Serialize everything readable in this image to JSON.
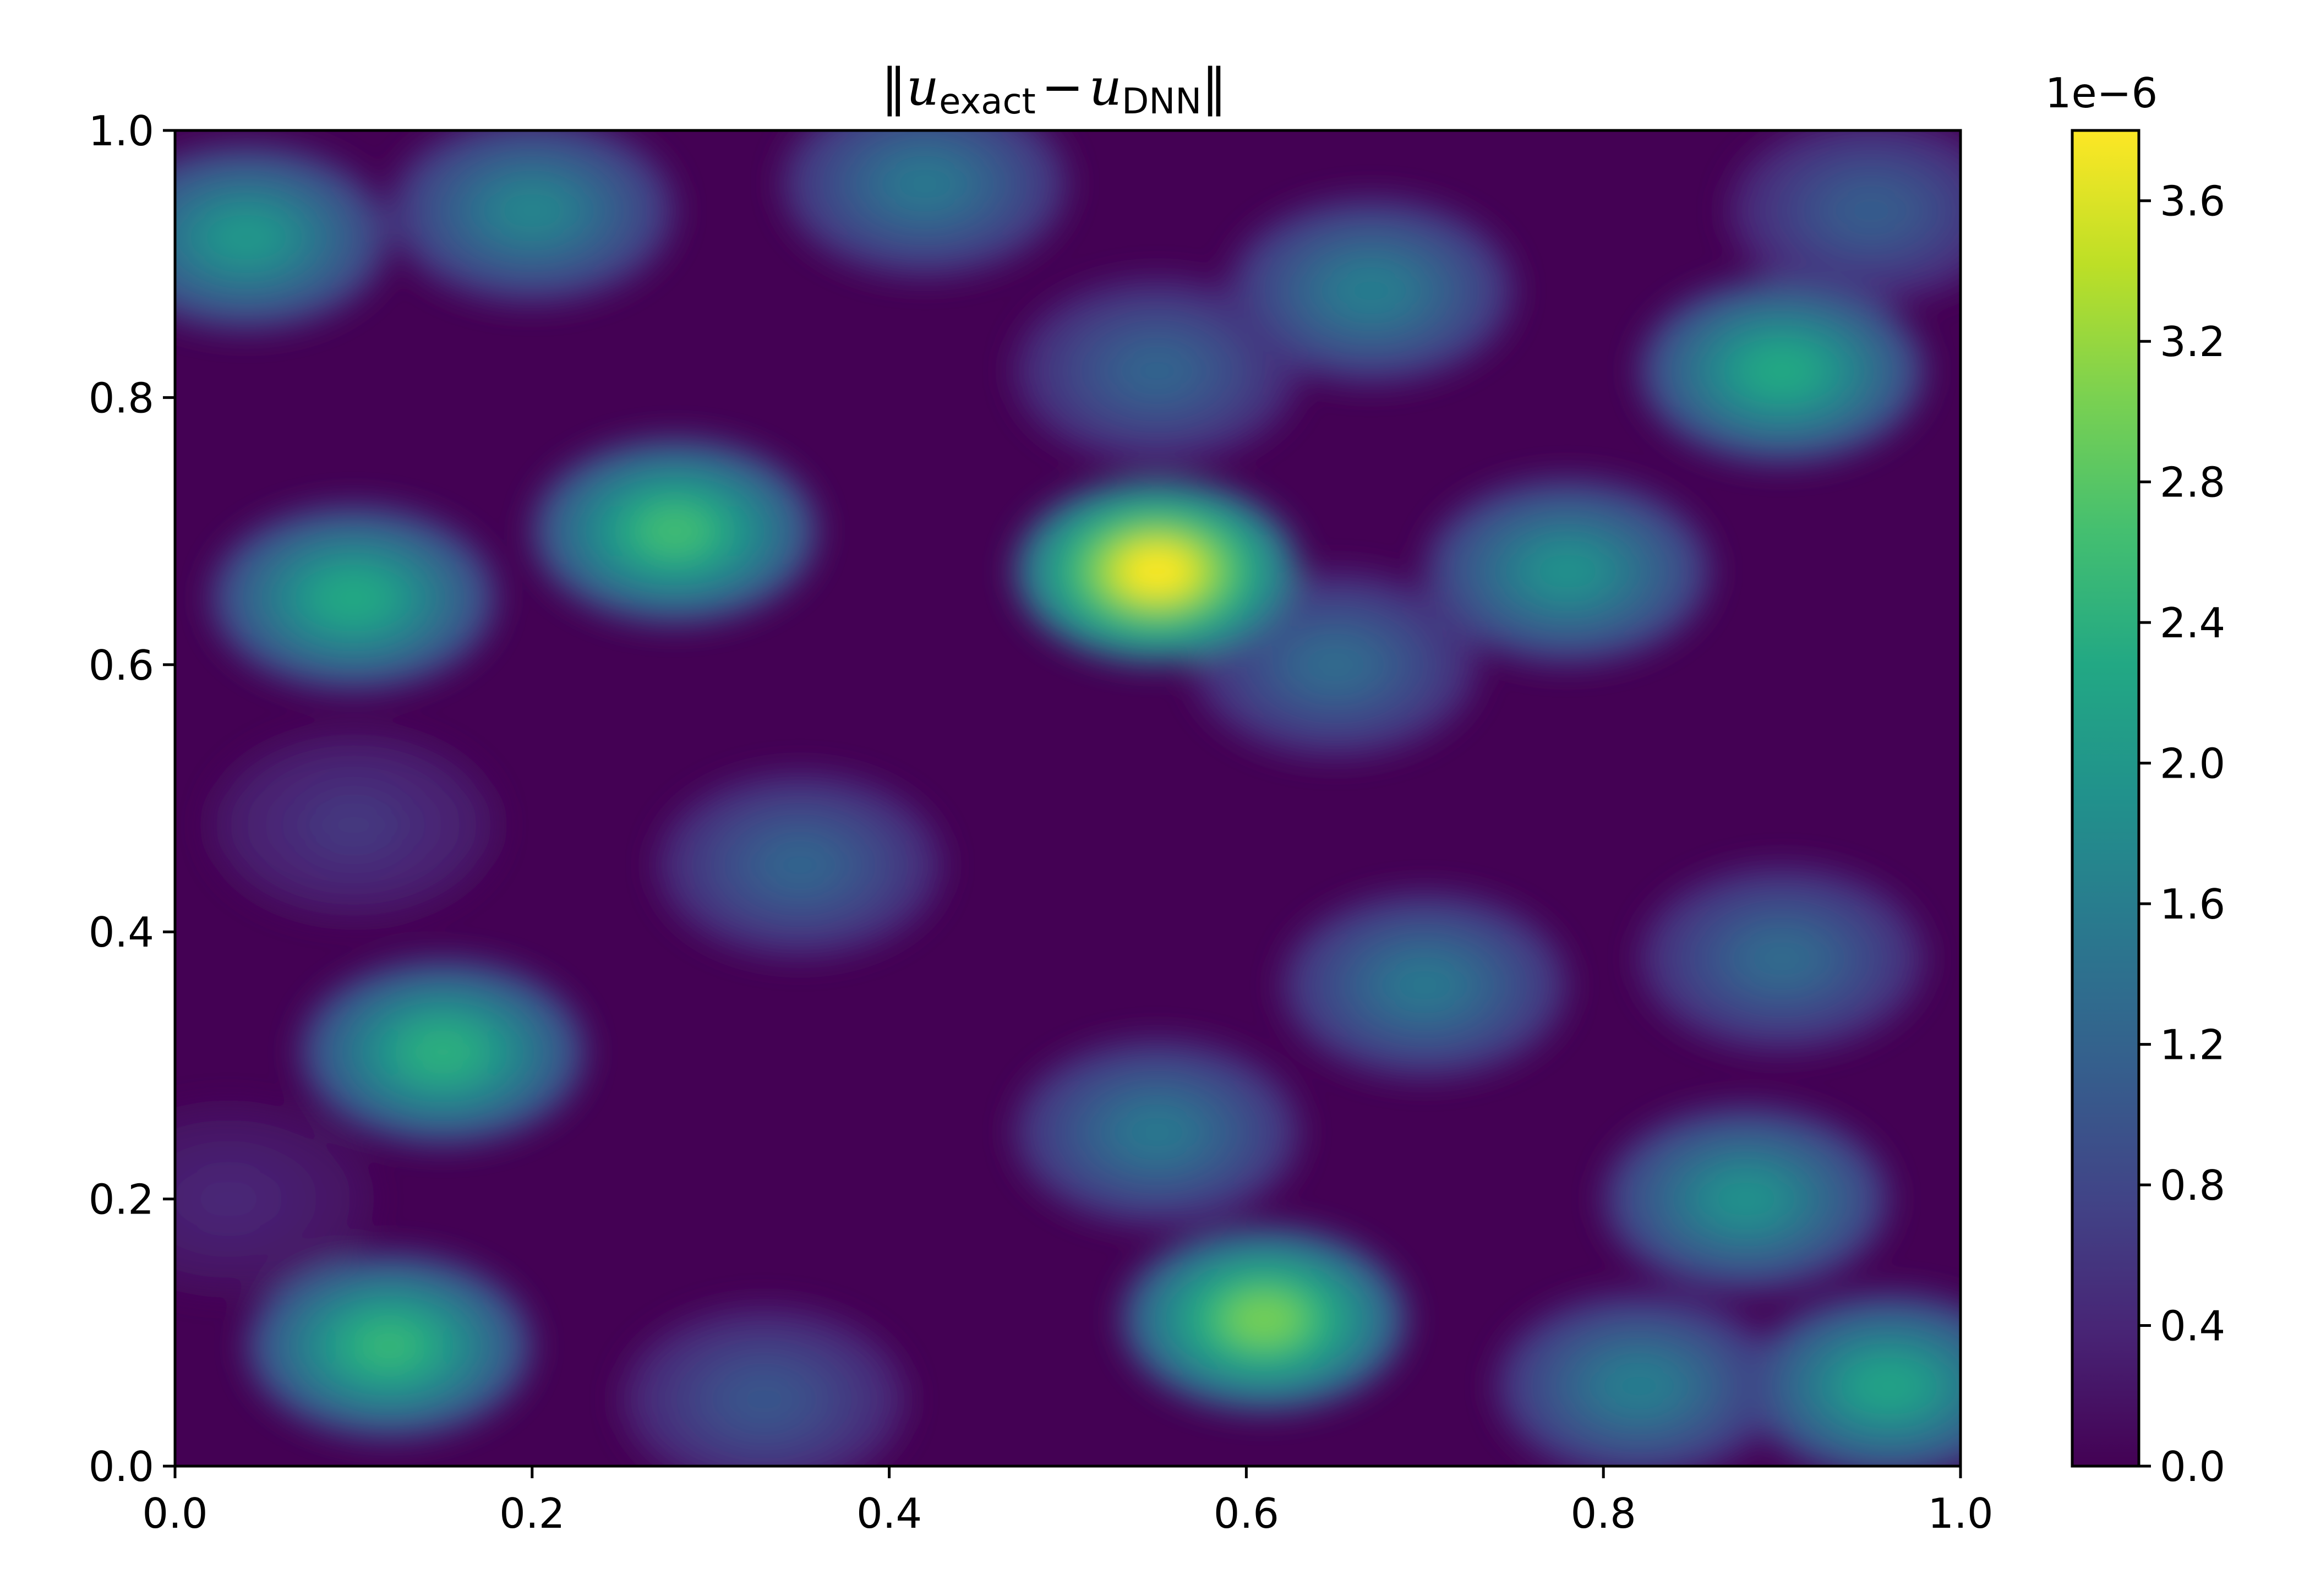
{
  "chart_data": {
    "type": "heatmap",
    "title": {
      "norm_open": "‖",
      "u1": "u",
      "sub1": "exact",
      "minus": "−",
      "u2": "u",
      "sub2": "DNN",
      "norm_close": "‖"
    },
    "xlabel": "",
    "ylabel": "",
    "xlim": [
      0.0,
      1.0
    ],
    "ylim": [
      0.0,
      1.0
    ],
    "x_ticks": [
      "0.0",
      "0.2",
      "0.4",
      "0.6",
      "0.8",
      "1.0"
    ],
    "y_ticks": [
      "0.0",
      "0.2",
      "0.4",
      "0.6",
      "0.8",
      "1.0"
    ],
    "colormap": "viridis",
    "colorbar": {
      "range": [
        0.0,
        3.8
      ],
      "exponent_label": "1e−6",
      "ticks": [
        "0.0",
        "0.4",
        "0.8",
        "1.2",
        "1.6",
        "2.0",
        "2.4",
        "2.8",
        "3.2",
        "3.6"
      ],
      "tick_values": [
        0.0,
        0.4,
        0.8,
        1.2,
        1.6,
        2.0,
        2.4,
        2.8,
        3.2,
        3.6
      ]
    },
    "peaks": [
      {
        "x": 0.55,
        "y": 0.67,
        "value": 3.8
      },
      {
        "x": 0.61,
        "y": 0.11,
        "value": 3.0
      },
      {
        "x": 0.28,
        "y": 0.7,
        "value": 2.6
      },
      {
        "x": 0.1,
        "y": 0.65,
        "value": 2.3
      },
      {
        "x": 0.15,
        "y": 0.31,
        "value": 2.4
      },
      {
        "x": 0.12,
        "y": 0.09,
        "value": 2.5
      },
      {
        "x": 0.9,
        "y": 0.82,
        "value": 2.3
      },
      {
        "x": 0.96,
        "y": 0.06,
        "value": 2.2
      },
      {
        "x": 0.04,
        "y": 0.92,
        "value": 2.0
      },
      {
        "x": 0.2,
        "y": 0.94,
        "value": 1.7
      },
      {
        "x": 0.42,
        "y": 0.96,
        "value": 1.5
      },
      {
        "x": 0.67,
        "y": 0.88,
        "value": 1.6
      },
      {
        "x": 0.78,
        "y": 0.67,
        "value": 1.9
      },
      {
        "x": 0.88,
        "y": 0.2,
        "value": 1.9
      },
      {
        "x": 0.55,
        "y": 0.82,
        "value": 1.2
      },
      {
        "x": 0.35,
        "y": 0.45,
        "value": 1.2
      },
      {
        "x": 0.7,
        "y": 0.36,
        "value": 1.5
      },
      {
        "x": 0.9,
        "y": 0.38,
        "value": 1.3
      },
      {
        "x": 0.33,
        "y": 0.05,
        "value": 1.0
      },
      {
        "x": 0.82,
        "y": 0.06,
        "value": 1.6
      },
      {
        "x": 0.95,
        "y": 0.94,
        "value": 1.1
      },
      {
        "x": 0.1,
        "y": 0.48,
        "value": 0.6
      },
      {
        "x": 0.55,
        "y": 0.25,
        "value": 1.5
      },
      {
        "x": 0.65,
        "y": 0.6,
        "value": 1.3
      },
      {
        "x": 0.03,
        "y": 0.2,
        "value": 0.4
      }
    ]
  }
}
